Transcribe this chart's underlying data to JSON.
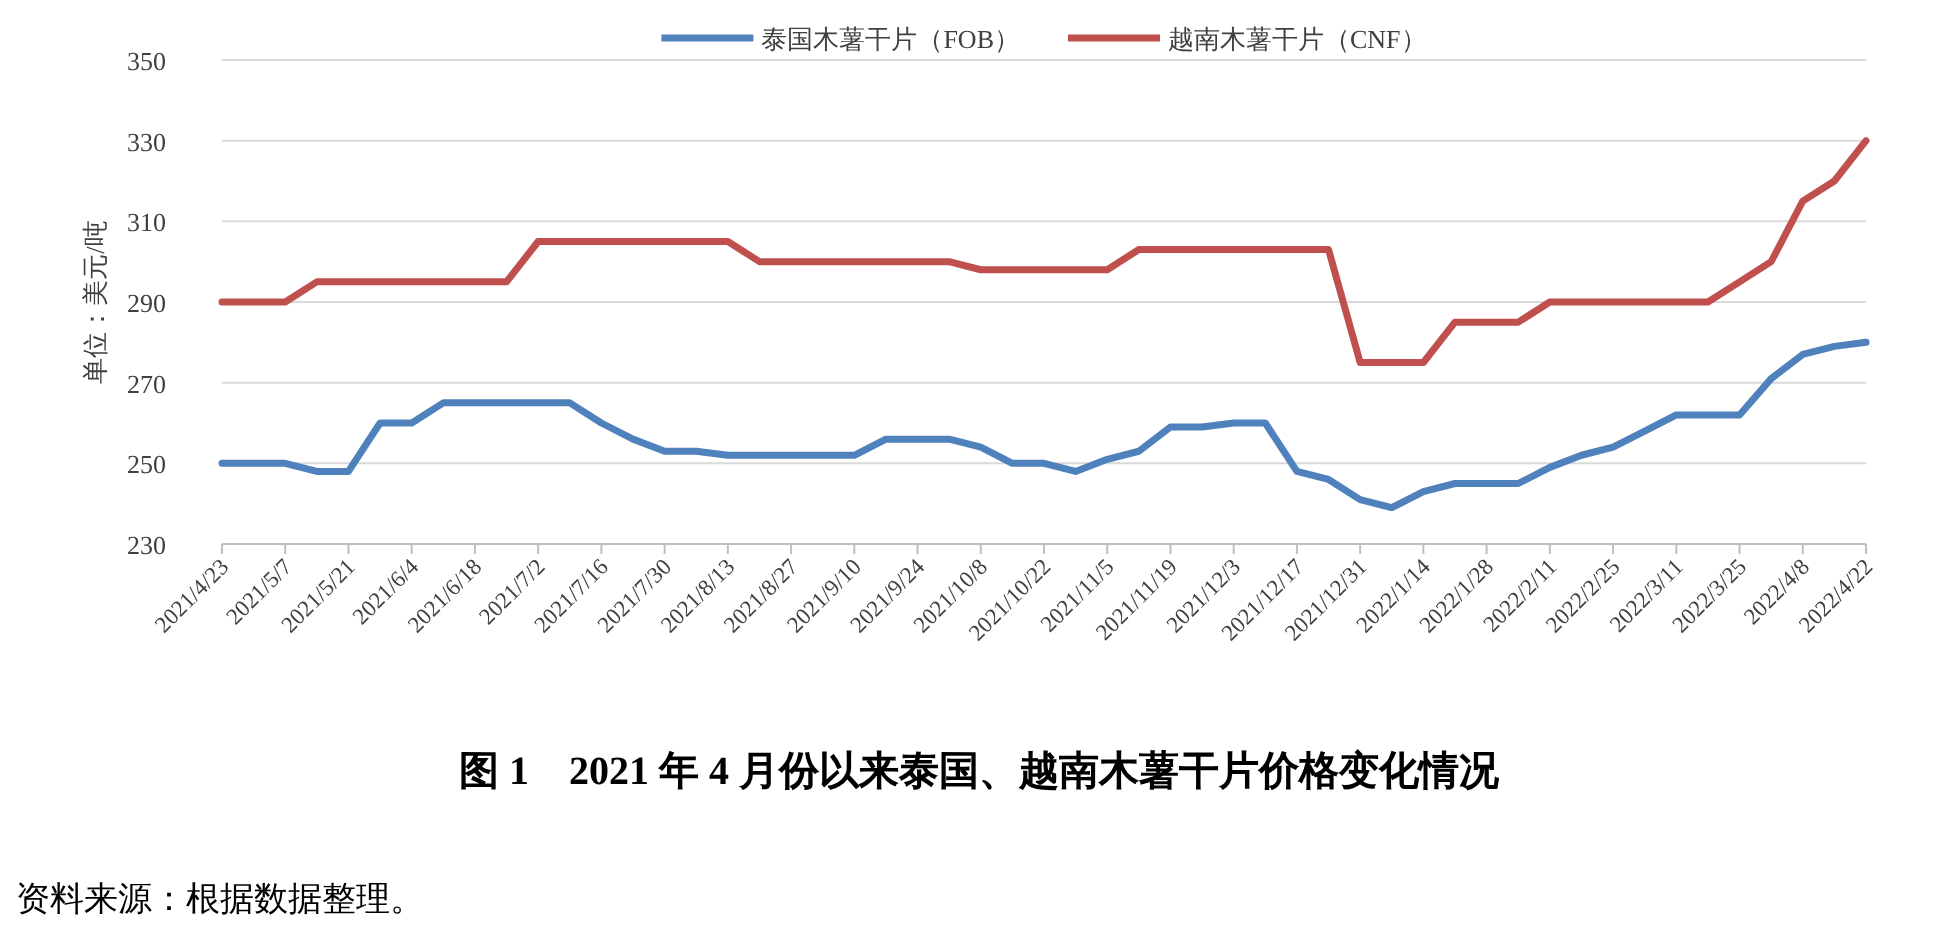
{
  "chart_data": {
    "type": "line",
    "title": "图 1　2021 年 4 月份以来泰国、越南木薯干片价格变化情况",
    "ylabel": "单位：美元/吨",
    "annotations": [
      "资料来源：根据数据整理。"
    ],
    "categories": [
      "2021/4/23",
      null,
      "2021/5/7",
      null,
      "2021/5/21",
      null,
      "2021/6/4",
      null,
      "2021/6/18",
      null,
      "2021/7/2",
      null,
      "2021/7/16",
      null,
      "2021/7/30",
      null,
      "2021/8/13",
      null,
      "2021/8/27",
      null,
      "2021/9/10",
      null,
      "2021/9/24",
      null,
      "2021/10/8",
      null,
      "2021/10/22",
      null,
      "2021/11/5",
      null,
      "2021/11/19",
      null,
      "2021/12/3",
      null,
      "2021/12/17",
      null,
      "2021/12/31",
      null,
      "2022/1/14",
      null,
      "2022/1/28",
      null,
      "2022/2/11",
      null,
      "2022/2/25",
      null,
      "2022/3/11",
      null,
      "2022/3/25",
      null,
      "2022/4/8",
      null,
      "2022/4/22"
    ],
    "series": [
      {
        "name": "泰国木薯干片（FOB）",
        "color": "#4f81bd",
        "values": [
          250,
          250,
          250,
          248,
          248,
          260,
          260,
          265,
          265,
          265,
          265,
          265,
          260,
          256,
          253,
          253,
          252,
          252,
          252,
          252,
          252,
          256,
          256,
          256,
          254,
          250,
          250,
          248,
          251,
          253,
          259,
          259,
          260,
          260,
          248,
          246,
          241,
          239,
          243,
          245,
          245,
          245,
          249,
          252,
          254,
          258,
          262,
          262,
          262,
          271,
          277,
          279,
          280
        ]
      },
      {
        "name": "越南木薯干片（CNF）",
        "color": "#c0504d",
        "values": [
          290,
          290,
          290,
          295,
          295,
          295,
          295,
          295,
          295,
          295,
          305,
          305,
          305,
          305,
          305,
          305,
          305,
          300,
          300,
          300,
          300,
          300,
          300,
          300,
          298,
          298,
          298,
          298,
          298,
          303,
          303,
          303,
          303,
          303,
          303,
          303,
          275,
          275,
          275,
          285,
          285,
          285,
          290,
          290,
          290,
          290,
          290,
          290,
          295,
          300,
          315,
          320,
          330
        ]
      }
    ],
    "ylim": [
      230,
      350
    ],
    "yticks": [
      230,
      250,
      270,
      290,
      310,
      330,
      350
    ],
    "grid": "y",
    "legend": "top",
    "marker": "none",
    "line_style": "solid"
  }
}
